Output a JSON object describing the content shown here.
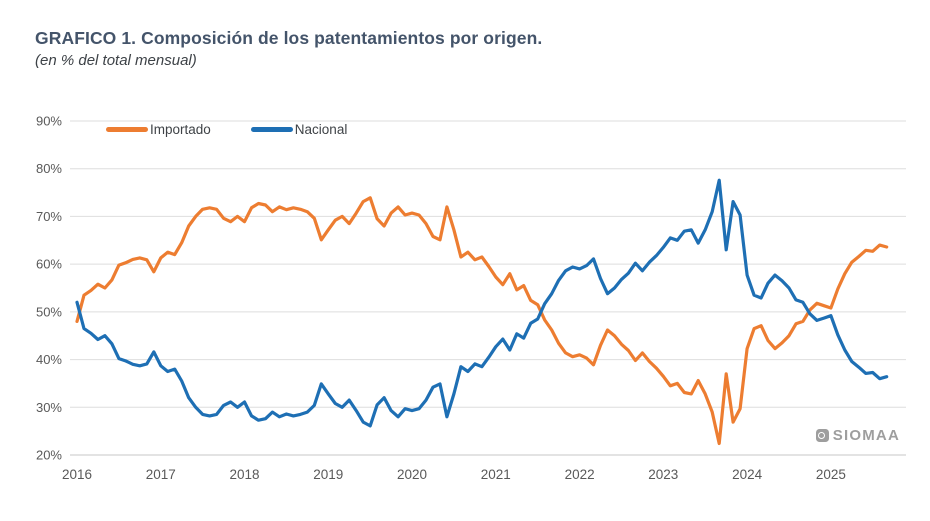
{
  "header": {
    "title": "GRAFICO 1. Composición de los patentamientos por origen.",
    "subtitle": "(en % del total mensual)"
  },
  "watermark": {
    "text": "SIOMAA"
  },
  "chart_data": {
    "type": "line",
    "title": "GRAFICO 1. Composición de los patentamientos por origen.",
    "subtitle": "(en % del total mensual)",
    "frequency": "monthly",
    "x_start": "2016-01",
    "x_end": "2025-09",
    "x_ticks": [
      "2016",
      "2017",
      "2018",
      "2019",
      "2020",
      "2021",
      "2022",
      "2023",
      "2024",
      "2025"
    ],
    "ylim": [
      20,
      90
    ],
    "ytick_step": 10,
    "ytick_suffix": "%",
    "grid": "horizontal",
    "legend_position": "top-left",
    "series": [
      {
        "name": "Importado",
        "color": "#ED7D31",
        "values": [
          48.0,
          53.5,
          54.5,
          55.8,
          55.0,
          56.7,
          59.8,
          60.3,
          61.0,
          61.3,
          60.9,
          58.4,
          61.3,
          62.5,
          62.0,
          64.5,
          68.0,
          70.0,
          71.5,
          71.8,
          71.5,
          69.6,
          68.9,
          70.0,
          68.9,
          71.8,
          72.7,
          72.4,
          71.0,
          72.0,
          71.4,
          71.8,
          71.5,
          71.0,
          69.6,
          65.1,
          67.2,
          69.2,
          70.0,
          68.5,
          70.7,
          73.1,
          73.9,
          69.5,
          68.0,
          70.7,
          72.0,
          70.3,
          70.7,
          70.3,
          68.5,
          65.8,
          65.1,
          72.0,
          67.2,
          61.5,
          62.5,
          60.9,
          61.5,
          59.5,
          57.3,
          55.7,
          58.0,
          54.6,
          55.5,
          52.4,
          51.5,
          48.3,
          46.2,
          43.4,
          41.4,
          40.6,
          41.0,
          40.3,
          38.9,
          43.0,
          46.2,
          45.0,
          43.2,
          41.9,
          39.8,
          41.4,
          39.6,
          38.2,
          36.5,
          34.5,
          35.0,
          33.1,
          32.8,
          35.6,
          32.8,
          29.0,
          22.4,
          37.0,
          26.9,
          29.7,
          42.3,
          46.5,
          47.1,
          44.0,
          42.3,
          43.5,
          45.0,
          47.5,
          48.0,
          50.4,
          51.8,
          51.3,
          50.8,
          54.8,
          58.0,
          60.4,
          61.6,
          62.9,
          62.7,
          64.0,
          63.6
        ]
      },
      {
        "name": "Nacional",
        "color": "#1E6FB4",
        "values": [
          52.0,
          46.5,
          45.5,
          44.2,
          45.0,
          43.3,
          40.2,
          39.7,
          39.0,
          38.7,
          39.1,
          41.6,
          38.7,
          37.5,
          38.0,
          35.5,
          32.0,
          30.0,
          28.5,
          28.2,
          28.5,
          30.4,
          31.1,
          30.0,
          31.1,
          28.2,
          27.3,
          27.6,
          29.0,
          28.0,
          28.6,
          28.2,
          28.5,
          29.0,
          30.4,
          34.9,
          32.8,
          30.8,
          30.0,
          31.5,
          29.3,
          26.9,
          26.1,
          30.5,
          32.0,
          29.3,
          28.0,
          29.7,
          29.3,
          29.7,
          31.5,
          34.2,
          34.9,
          28.0,
          32.8,
          38.5,
          37.5,
          39.1,
          38.5,
          40.5,
          42.7,
          44.3,
          42.0,
          45.4,
          44.5,
          47.6,
          48.5,
          51.7,
          53.8,
          56.6,
          58.6,
          59.4,
          59.0,
          59.7,
          61.1,
          57.0,
          53.8,
          55.0,
          56.8,
          58.1,
          60.2,
          58.6,
          60.4,
          61.8,
          63.5,
          65.5,
          65.0,
          66.9,
          67.2,
          64.4,
          67.2,
          71.0,
          77.6,
          63.0,
          73.1,
          70.3,
          57.7,
          53.5,
          52.9,
          56.0,
          57.7,
          56.5,
          55.0,
          52.5,
          52.0,
          49.6,
          48.2,
          48.7,
          49.2,
          45.2,
          42.0,
          39.6,
          38.4,
          37.1,
          37.3,
          36.0,
          36.4
        ]
      }
    ]
  }
}
